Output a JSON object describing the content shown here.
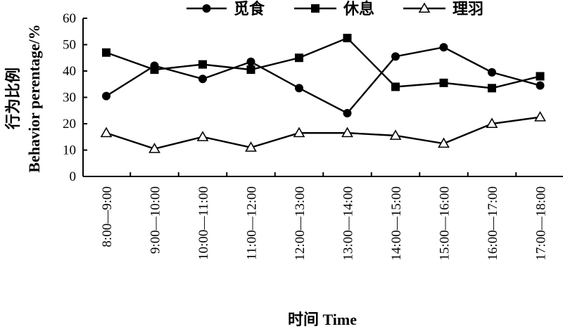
{
  "chart_data": {
    "type": "line",
    "title": "",
    "xlabel": "时间 Time",
    "ylabel_cn": "行为比例",
    "ylabel_en": "Behavior perentage/%",
    "ylim": [
      0,
      60
    ],
    "yticks": [
      "0",
      "10",
      "20",
      "30",
      "40",
      "50",
      "60"
    ],
    "categories": [
      "8:00—9:00",
      "9:00—10:00",
      "10:00—11:00",
      "11:00—12:00",
      "12:00—13:00",
      "13:00—14:00",
      "14:00—15:00",
      "15:00—16:00",
      "16:00—17:00",
      "17:00—18:00"
    ],
    "legend_position": "top",
    "grid": false,
    "series": [
      {
        "name": "觅食",
        "marker": "circle",
        "values": [
          30.5,
          42.0,
          37.0,
          43.5,
          33.5,
          24.0,
          45.5,
          49.0,
          39.5,
          34.5
        ]
      },
      {
        "name": "休息",
        "marker": "square",
        "values": [
          47.0,
          40.5,
          42.5,
          40.5,
          45.0,
          52.5,
          34.0,
          35.5,
          33.5,
          38.0
        ]
      },
      {
        "name": "理羽",
        "marker": "triangle",
        "values": [
          16.5,
          10.5,
          15.0,
          11.0,
          16.5,
          16.5,
          15.5,
          12.5,
          20.0,
          22.5
        ]
      }
    ]
  }
}
